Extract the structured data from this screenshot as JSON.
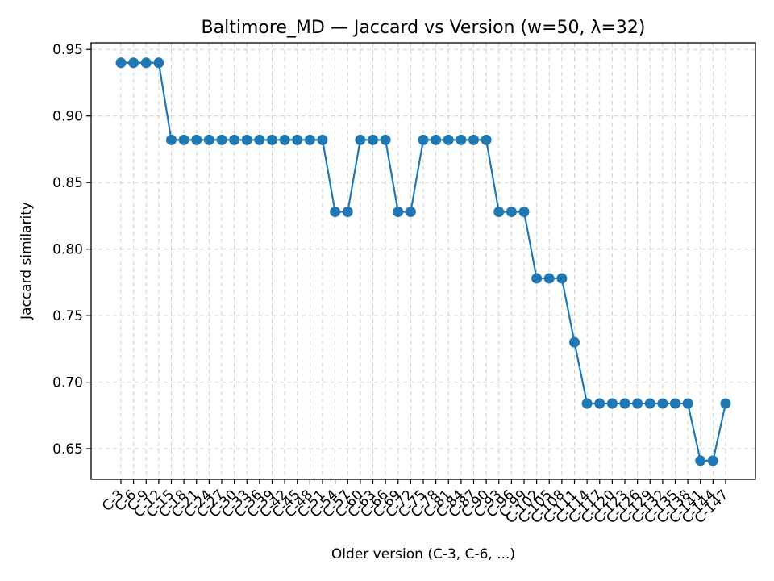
{
  "chart_data": {
    "type": "line",
    "title": "Baltimore_MD — Jaccard vs Version (w=50, λ=32)",
    "xlabel": "Older version (C-3, C-6, ...)",
    "ylabel": "Jaccard similarity",
    "ylim": [
      0.627,
      0.955
    ],
    "yticks": [
      0.65,
      0.7,
      0.75,
      0.8,
      0.85,
      0.9,
      0.95
    ],
    "grid": true,
    "colors": {
      "series": "#1f77b4"
    },
    "categories": [
      "C-3",
      "C-6",
      "C-9",
      "C-12",
      "C-15",
      "C-18",
      "C-21",
      "C-24",
      "C-27",
      "C-30",
      "C-33",
      "C-36",
      "C-39",
      "C-42",
      "C-45",
      "C-48",
      "C-51",
      "C-54",
      "C-57",
      "C-60",
      "C-63",
      "C-66",
      "C-69",
      "C-72",
      "C-75",
      "C-78",
      "C-81",
      "C-84",
      "C-87",
      "C-90",
      "C-93",
      "C-96",
      "C-99",
      "C-102",
      "C-105",
      "C-108",
      "C-111",
      "C-114",
      "C-117",
      "C-120",
      "C-123",
      "C-126",
      "C-129",
      "C-132",
      "C-135",
      "C-138",
      "C-141",
      "C-144",
      "C-147"
    ],
    "series": [
      {
        "values": [
          0.94,
          0.94,
          0.94,
          0.94,
          0.882,
          0.882,
          0.882,
          0.882,
          0.882,
          0.882,
          0.882,
          0.882,
          0.882,
          0.882,
          0.882,
          0.882,
          0.882,
          0.828,
          0.828,
          0.882,
          0.882,
          0.882,
          0.828,
          0.828,
          0.882,
          0.882,
          0.882,
          0.882,
          0.882,
          0.882,
          0.828,
          0.828,
          0.828,
          0.778,
          0.778,
          0.778,
          0.73,
          0.684,
          0.684,
          0.684,
          0.684,
          0.684,
          0.684,
          0.684,
          0.684,
          0.684,
          0.641,
          0.641,
          0.684
        ]
      }
    ]
  }
}
